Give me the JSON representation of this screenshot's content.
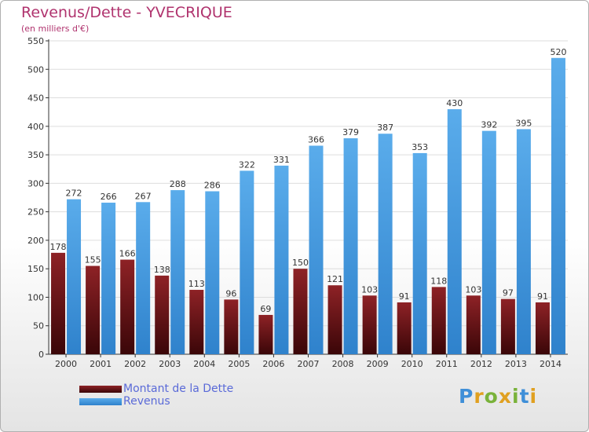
{
  "chart_data": {
    "type": "bar",
    "title": "Revenus/Dette - YVECRIQUE",
    "subtitle": "(en milliers d'€)",
    "categories": [
      "2000",
      "2001",
      "2002",
      "2003",
      "2004",
      "2005",
      "2006",
      "2007",
      "2008",
      "2009",
      "2010",
      "2011",
      "2012",
      "2013",
      "2014"
    ],
    "series": [
      {
        "name": "Montant de la Dette",
        "color": "#7a1a1f",
        "values": [
          178,
          155,
          166,
          138,
          113,
          96,
          69,
          150,
          121,
          103,
          91,
          118,
          103,
          97,
          91
        ]
      },
      {
        "name": "Revenus",
        "color": "#4da3e3",
        "values": [
          272,
          266,
          267,
          288,
          286,
          322,
          331,
          366,
          379,
          387,
          353,
          430,
          392,
          395,
          520
        ]
      }
    ],
    "ylim": [
      0,
      550
    ],
    "yticks": [
      0,
      50,
      100,
      150,
      200,
      250,
      300,
      350,
      400,
      450,
      500,
      550
    ],
    "grid": true,
    "legend": "bottom-left"
  },
  "logo": {
    "letters": [
      {
        "ch": "P",
        "color": "#3f8fd8"
      },
      {
        "ch": "r",
        "color": "#e0a020"
      },
      {
        "ch": "o",
        "color": "#79b23a"
      },
      {
        "ch": "x",
        "color": "#e0a020"
      },
      {
        "ch": "i",
        "color": "#79b23a"
      },
      {
        "ch": "t",
        "color": "#3f8fd8"
      },
      {
        "ch": "i",
        "color": "#e0a020"
      }
    ]
  }
}
